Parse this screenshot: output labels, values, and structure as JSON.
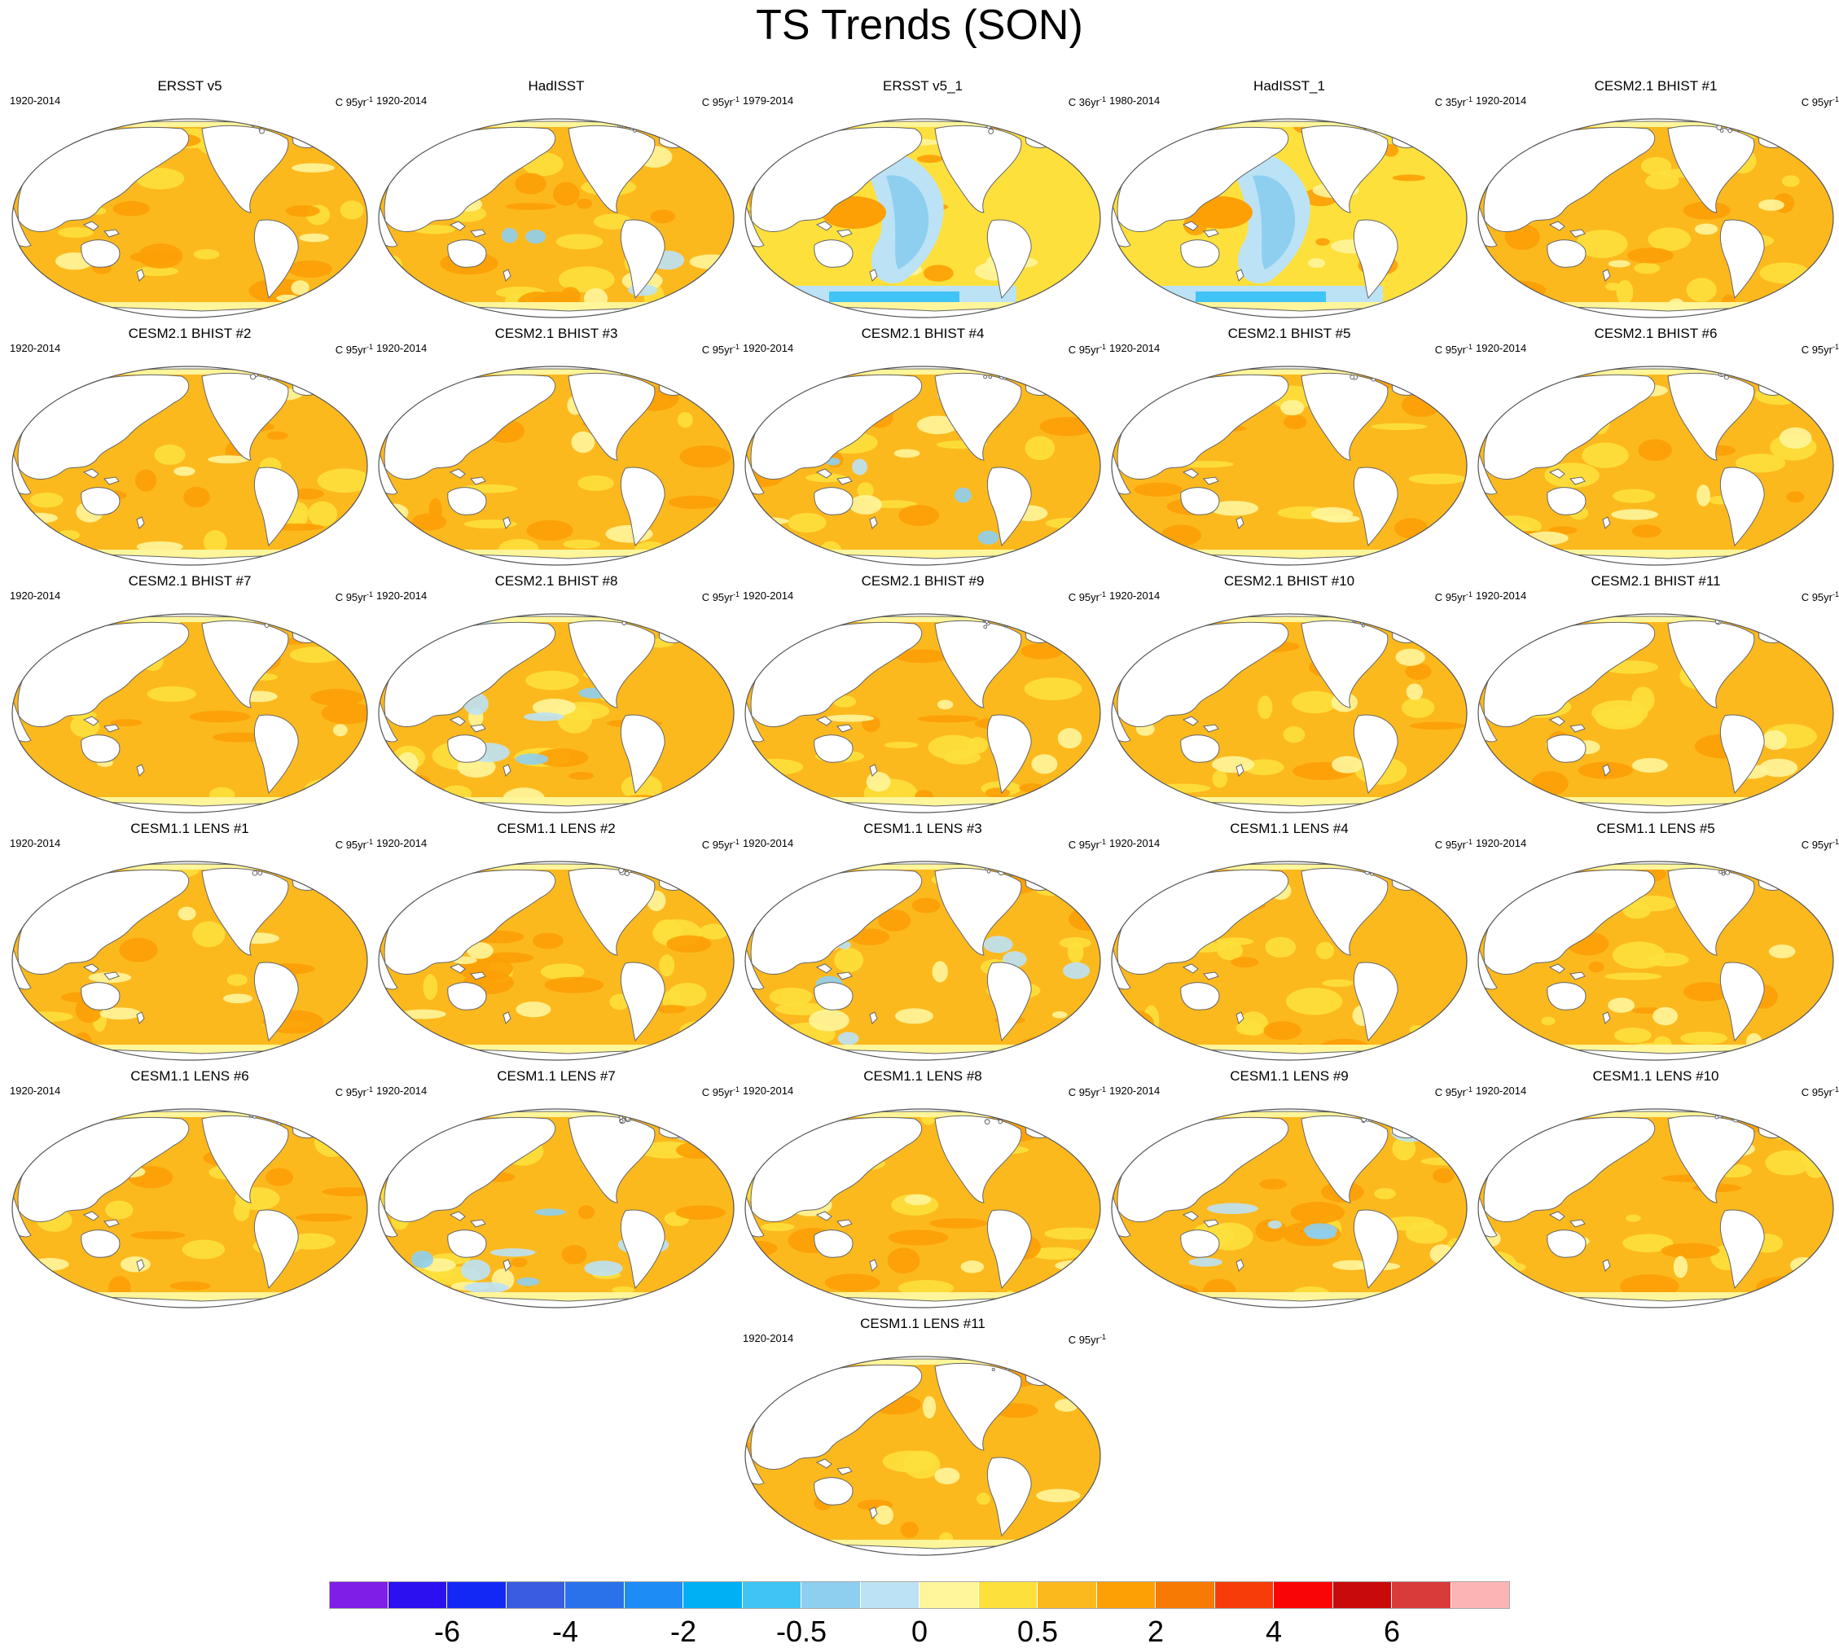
{
  "figure": {
    "title": "TS Trends (SON)"
  },
  "panels": [
    {
      "title": "ERSST v5",
      "period": "1920-2014",
      "units_base": "C 95yr",
      "units_exp": "-1",
      "pattern": "warm"
    },
    {
      "title": "HadISST",
      "period": "1920-2014",
      "units_base": "C 95yr",
      "units_exp": "-1",
      "pattern": "warm-mixed"
    },
    {
      "title": "ERSST v5_1",
      "period": "1979-2014",
      "units_base": "C 36yr",
      "units_exp": "-1",
      "pattern": "cool-pacific"
    },
    {
      "title": "HadISST_1",
      "period": "1980-2014",
      "units_base": "C 35yr",
      "units_exp": "-1",
      "pattern": "cool-pacific"
    },
    {
      "title": "CESM2.1 BHIST #1",
      "period": "1920-2014",
      "units_base": "C 95yr",
      "units_exp": "-1",
      "pattern": "warm"
    },
    {
      "title": "CESM2.1 BHIST #2",
      "period": "1920-2014",
      "units_base": "C 95yr",
      "units_exp": "-1",
      "pattern": "warm"
    },
    {
      "title": "CESM2.1 BHIST #3",
      "period": "1920-2014",
      "units_base": "C 95yr",
      "units_exp": "-1",
      "pattern": "warm"
    },
    {
      "title": "CESM2.1 BHIST #4",
      "period": "1920-2014",
      "units_base": "C 95yr",
      "units_exp": "-1",
      "pattern": "warm-mixed"
    },
    {
      "title": "CESM2.1 BHIST #5",
      "period": "1920-2014",
      "units_base": "C 95yr",
      "units_exp": "-1",
      "pattern": "warm"
    },
    {
      "title": "CESM2.1 BHIST #6",
      "period": "1920-2014",
      "units_base": "C 95yr",
      "units_exp": "-1",
      "pattern": "warm"
    },
    {
      "title": "CESM2.1 BHIST #7",
      "period": "1920-2014",
      "units_base": "C 95yr",
      "units_exp": "-1",
      "pattern": "warm"
    },
    {
      "title": "CESM2.1 BHIST #8",
      "period": "1920-2014",
      "units_base": "C 95yr",
      "units_exp": "-1",
      "pattern": "warm-mixed"
    },
    {
      "title": "CESM2.1 BHIST #9",
      "period": "1920-2014",
      "units_base": "C 95yr",
      "units_exp": "-1",
      "pattern": "warm"
    },
    {
      "title": "CESM2.1 BHIST #10",
      "period": "1920-2014",
      "units_base": "C 95yr",
      "units_exp": "-1",
      "pattern": "warm"
    },
    {
      "title": "CESM2.1 BHIST #11",
      "period": "1920-2014",
      "units_base": "C 95yr",
      "units_exp": "-1",
      "pattern": "warm"
    },
    {
      "title": "CESM1.1 LENS #1",
      "period": "1920-2014",
      "units_base": "C 95yr",
      "units_exp": "-1",
      "pattern": "warm"
    },
    {
      "title": "CESM1.1 LENS #2",
      "period": "1920-2014",
      "units_base": "C 95yr",
      "units_exp": "-1",
      "pattern": "warm"
    },
    {
      "title": "CESM1.1 LENS #3",
      "period": "1920-2014",
      "units_base": "C 95yr",
      "units_exp": "-1",
      "pattern": "warm-mixed"
    },
    {
      "title": "CESM1.1 LENS #4",
      "period": "1920-2014",
      "units_base": "C 95yr",
      "units_exp": "-1",
      "pattern": "warm"
    },
    {
      "title": "CESM1.1 LENS #5",
      "period": "1920-2014",
      "units_base": "C 95yr",
      "units_exp": "-1",
      "pattern": "warm"
    },
    {
      "title": "CESM1.1 LENS #6",
      "period": "1920-2014",
      "units_base": "C 95yr",
      "units_exp": "-1",
      "pattern": "warm"
    },
    {
      "title": "CESM1.1 LENS #7",
      "period": "1920-2014",
      "units_base": "C 95yr",
      "units_exp": "-1",
      "pattern": "warm-mixed"
    },
    {
      "title": "CESM1.1 LENS #8",
      "period": "1920-2014",
      "units_base": "C 95yr",
      "units_exp": "-1",
      "pattern": "warm"
    },
    {
      "title": "CESM1.1 LENS #9",
      "period": "1920-2014",
      "units_base": "C 95yr",
      "units_exp": "-1",
      "pattern": "warm-mixed"
    },
    {
      "title": "CESM1.1 LENS #10",
      "period": "1920-2014",
      "units_base": "C 95yr",
      "units_exp": "-1",
      "pattern": "warm"
    },
    {
      "title": "CESM1.1 LENS #11",
      "period": "1920-2014",
      "units_base": "C 95yr",
      "units_exp": "-1",
      "pattern": "warm"
    }
  ],
  "colorbar": {
    "colors": [
      "#7f1ee6",
      "#2d10ef",
      "#1428f5",
      "#3a5ce0",
      "#2a72ea",
      "#1e8cf5",
      "#00b0f5",
      "#40c4f5",
      "#8ecff0",
      "#bce2f5",
      "#fff59a",
      "#fde03c",
      "#fcb91e",
      "#fca005",
      "#f77a05",
      "#f73c0a",
      "#fa0505",
      "#c80a0a",
      "#d93a3a",
      "#fcb4b4"
    ],
    "labels": [
      "-6",
      "-4",
      "-2",
      "-0.5",
      "0",
      "0.5",
      "2",
      "4",
      "6"
    ],
    "label_boundaries": [
      2,
      4,
      6,
      8,
      10,
      12,
      14,
      16,
      18
    ]
  },
  "palette": {
    "ocean_light": "#fde03c",
    "ocean_warm": "#fcb91e",
    "ocean_hot": "#fca005",
    "ocean_very_hot": "#f77a05",
    "ocean_pale": "#fff59a",
    "cool_light": "#bce2f5",
    "cool": "#8ecff0",
    "cool_strong": "#40c4f5",
    "land": "#ffffff",
    "coast": "#666666"
  }
}
